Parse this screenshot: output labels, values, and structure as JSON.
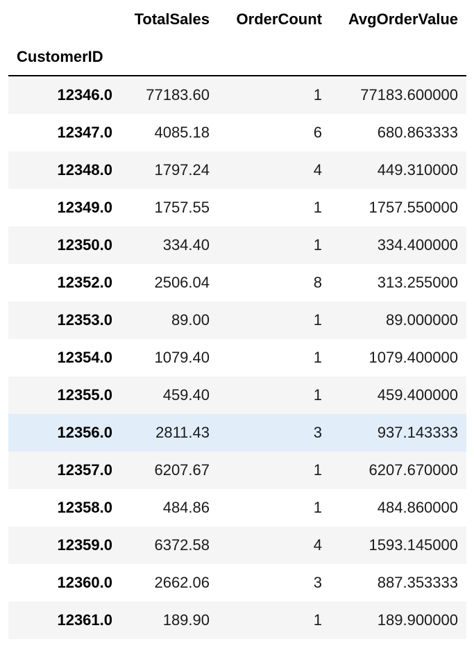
{
  "table": {
    "columns": [
      "TotalSales",
      "OrderCount",
      "AvgOrderValue"
    ],
    "index_name": "CustomerID",
    "hover_row": 9,
    "hover_color": "#e1edf9",
    "stripe_color": "#f5f5f5",
    "rows": [
      {
        "id": "12346.0",
        "total_sales": "77183.60",
        "order_count": "1",
        "avg_order_value": "77183.600000"
      },
      {
        "id": "12347.0",
        "total_sales": "4085.18",
        "order_count": "6",
        "avg_order_value": "680.863333"
      },
      {
        "id": "12348.0",
        "total_sales": "1797.24",
        "order_count": "4",
        "avg_order_value": "449.310000"
      },
      {
        "id": "12349.0",
        "total_sales": "1757.55",
        "order_count": "1",
        "avg_order_value": "1757.550000"
      },
      {
        "id": "12350.0",
        "total_sales": "334.40",
        "order_count": "1",
        "avg_order_value": "334.400000"
      },
      {
        "id": "12352.0",
        "total_sales": "2506.04",
        "order_count": "8",
        "avg_order_value": "313.255000"
      },
      {
        "id": "12353.0",
        "total_sales": "89.00",
        "order_count": "1",
        "avg_order_value": "89.000000"
      },
      {
        "id": "12354.0",
        "total_sales": "1079.40",
        "order_count": "1",
        "avg_order_value": "1079.400000"
      },
      {
        "id": "12355.0",
        "total_sales": "459.40",
        "order_count": "1",
        "avg_order_value": "459.400000"
      },
      {
        "id": "12356.0",
        "total_sales": "2811.43",
        "order_count": "3",
        "avg_order_value": "937.143333"
      },
      {
        "id": "12357.0",
        "total_sales": "6207.67",
        "order_count": "1",
        "avg_order_value": "6207.670000"
      },
      {
        "id": "12358.0",
        "total_sales": "484.86",
        "order_count": "1",
        "avg_order_value": "484.860000"
      },
      {
        "id": "12359.0",
        "total_sales": "6372.58",
        "order_count": "4",
        "avg_order_value": "1593.145000"
      },
      {
        "id": "12360.0",
        "total_sales": "2662.06",
        "order_count": "3",
        "avg_order_value": "887.353333"
      },
      {
        "id": "12361.0",
        "total_sales": "189.90",
        "order_count": "1",
        "avg_order_value": "189.900000"
      }
    ]
  }
}
